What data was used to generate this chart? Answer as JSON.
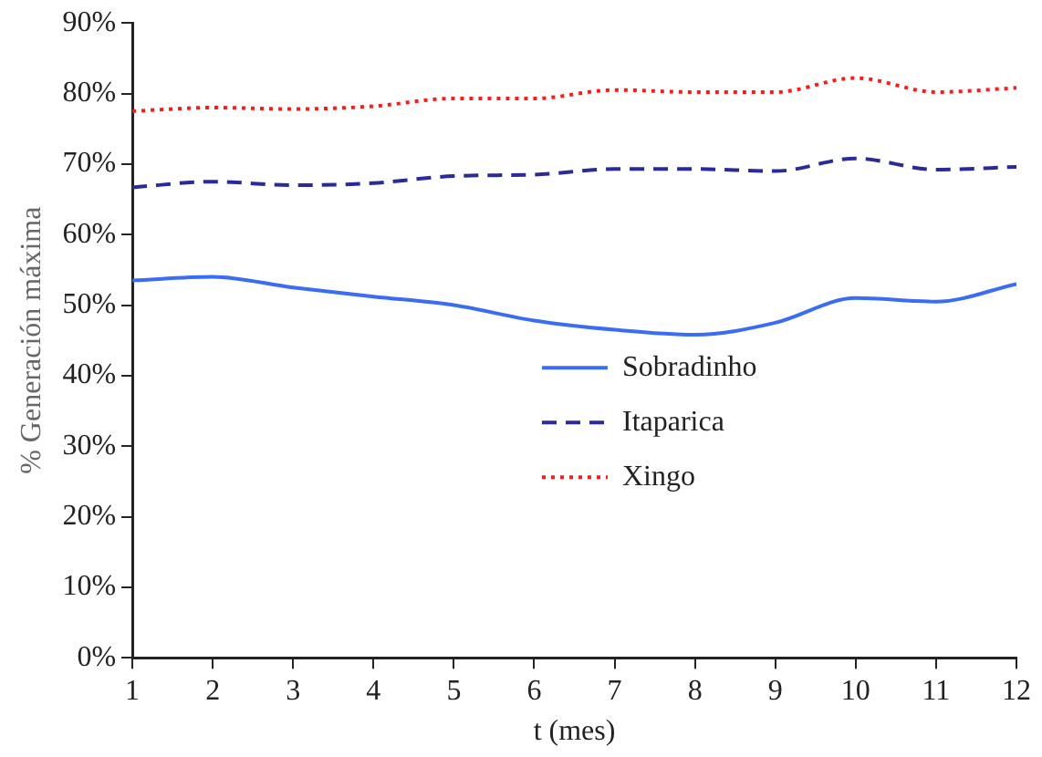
{
  "chart_data": {
    "type": "line",
    "xlabel": "t (mes)",
    "ylabel": "% Generación máxima",
    "x": [
      1,
      2,
      3,
      4,
      5,
      6,
      7,
      8,
      9,
      10,
      11,
      12
    ],
    "xlim": [
      1,
      12
    ],
    "xticks": [
      1,
      2,
      3,
      4,
      5,
      6,
      7,
      8,
      9,
      10,
      11,
      12
    ],
    "ylim": [
      0,
      90
    ],
    "yticks": [
      {
        "value": 0,
        "label": "0%"
      },
      {
        "value": 10,
        "label": "10%"
      },
      {
        "value": 20,
        "label": "20%"
      },
      {
        "value": 30,
        "label": "30%"
      },
      {
        "value": 40,
        "label": "40%"
      },
      {
        "value": 50,
        "label": "50%"
      },
      {
        "value": 60,
        "label": "60%"
      },
      {
        "value": 70,
        "label": "70%"
      },
      {
        "value": 80,
        "label": "80%"
      },
      {
        "value": 90,
        "label": "90%"
      }
    ],
    "grid": false,
    "legend": "right",
    "marker": "none",
    "series": [
      {
        "name": "Sobradinho",
        "color": "#3a6cf4",
        "line_style": "solid",
        "values": [
          53.5,
          54,
          52.5,
          51.2,
          50,
          47.8,
          46.5,
          45.8,
          47.5,
          51,
          50.5,
          53
        ]
      },
      {
        "name": "Itaparica",
        "color": "#2a2a9a",
        "line_style": "dashed",
        "values": [
          66.7,
          67.5,
          67,
          67.3,
          68.3,
          68.5,
          69.3,
          69.3,
          69,
          70.8,
          69.2,
          69.6
        ]
      },
      {
        "name": "Xingo",
        "color": "#ff1a1a",
        "line_style": "dotted",
        "values": [
          77.5,
          78,
          77.8,
          78.2,
          79.3,
          79.3,
          80.5,
          80.2,
          80.2,
          82.2,
          80.2,
          80.8
        ]
      }
    ]
  }
}
